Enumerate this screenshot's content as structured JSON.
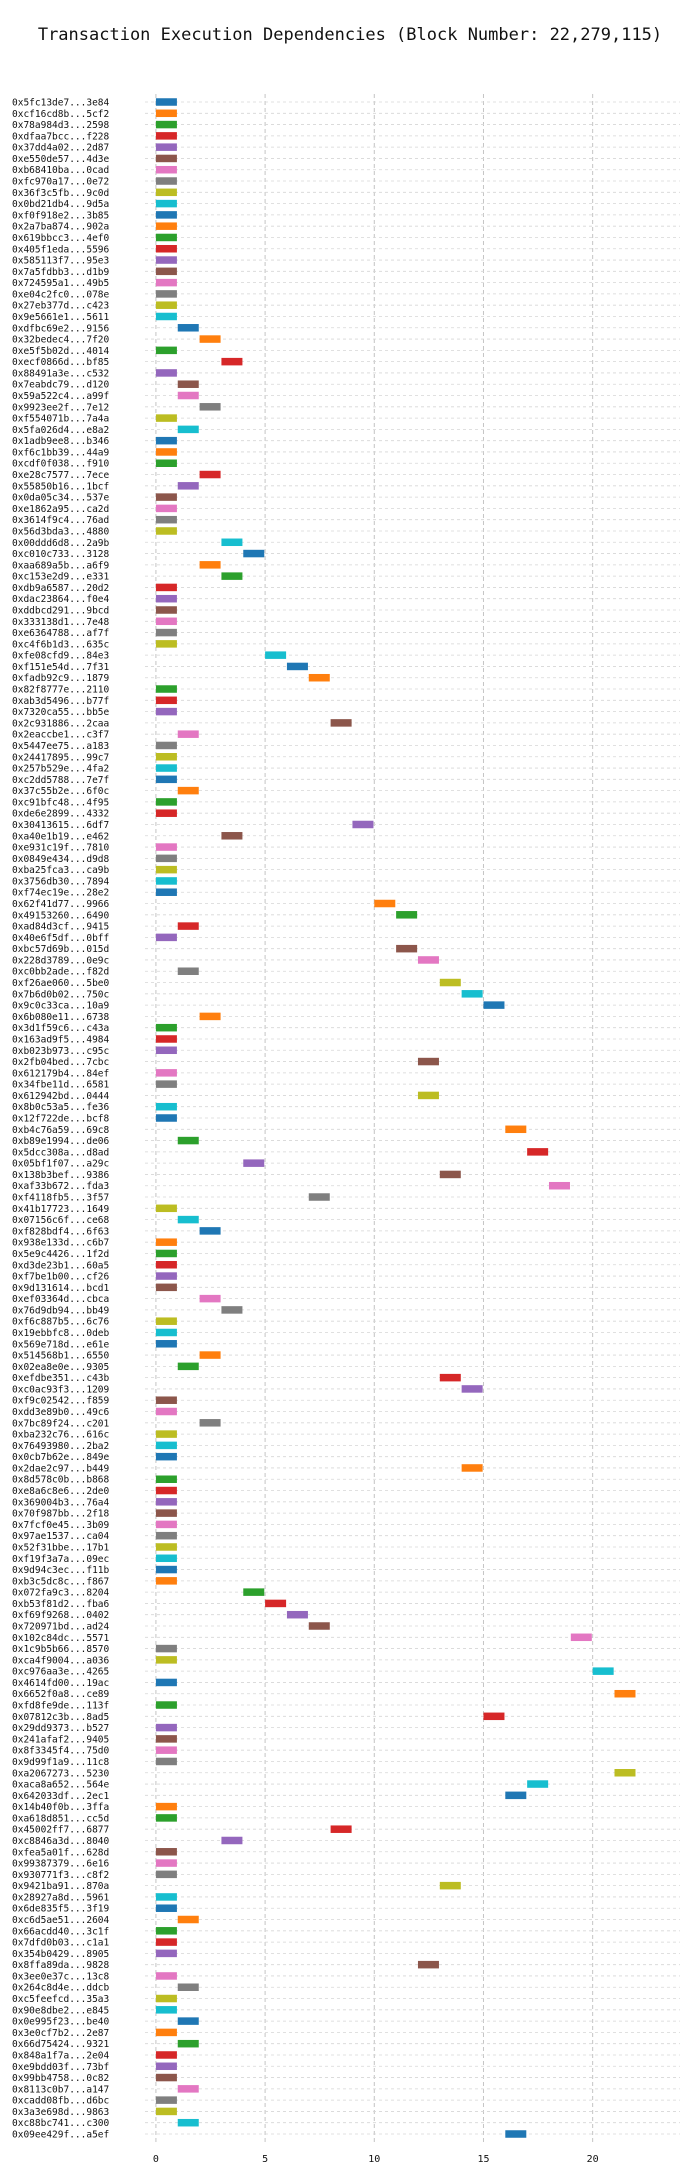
{
  "chart_data": {
    "type": "gantt",
    "title": "Transaction Execution Dependencies (Block Number: 22,279,115)",
    "xlabel": "",
    "ylabel": "",
    "x_ticks": [
      0,
      5,
      10,
      15,
      20
    ],
    "xlim": [
      -0.5,
      24
    ],
    "grid": true,
    "colors": [
      "#1f77b4",
      "#ff7f0e",
      "#2ca02c",
      "#d62728",
      "#9467bd",
      "#8c564b",
      "#e377c2",
      "#7f7f7f",
      "#bcbd22",
      "#17becf"
    ],
    "transactions": [
      {
        "label": "0x5fc13de7...3e84",
        "start": 0
      },
      {
        "label": "0xcf16cd8b...5cf2",
        "start": 0
      },
      {
        "label": "0x78a984d3...2598",
        "start": 0
      },
      {
        "label": "0xdfaa7bcc...f228",
        "start": 0
      },
      {
        "label": "0x37dd4a02...2d87",
        "start": 0
      },
      {
        "label": "0xe550de57...4d3e",
        "start": 0
      },
      {
        "label": "0xb68410ba...0cad",
        "start": 0
      },
      {
        "label": "0xfc970a17...0e72",
        "start": 0
      },
      {
        "label": "0x36f3c5fb...9c0d",
        "start": 0
      },
      {
        "label": "0x0bd21db4...9d5a",
        "start": 0
      },
      {
        "label": "0xf0f918e2...3b85",
        "start": 0
      },
      {
        "label": "0x2a7ba874...902a",
        "start": 0
      },
      {
        "label": "0x619bbcc3...4ef0",
        "start": 0
      },
      {
        "label": "0x405f1eda...5596",
        "start": 0
      },
      {
        "label": "0x585113f7...95e3",
        "start": 0
      },
      {
        "label": "0x7a5fdbb3...d1b9",
        "start": 0
      },
      {
        "label": "0x724595a1...49b5",
        "start": 0
      },
      {
        "label": "0xe04c2fc0...078e",
        "start": 0
      },
      {
        "label": "0x27eb377d...c423",
        "start": 0
      },
      {
        "label": "0x9e5661e1...5611",
        "start": 0
      },
      {
        "label": "0xdfbc69e2...9156",
        "start": 1
      },
      {
        "label": "0x32bedec4...7f20",
        "start": 2
      },
      {
        "label": "0xe5f5b02d...4014",
        "start": 0
      },
      {
        "label": "0xecf0866d...bf85",
        "start": 3
      },
      {
        "label": "0x88491a3e...c532",
        "start": 0
      },
      {
        "label": "0x7eabdc79...d120",
        "start": 1
      },
      {
        "label": "0x59a522c4...a99f",
        "start": 1
      },
      {
        "label": "0x9923ee2f...7e12",
        "start": 2
      },
      {
        "label": "0xf554071b...7a4a",
        "start": 0
      },
      {
        "label": "0x5fa026d4...e8a2",
        "start": 1
      },
      {
        "label": "0x1adb9ee8...b346",
        "start": 0
      },
      {
        "label": "0xf6c1bb39...44a9",
        "start": 0
      },
      {
        "label": "0xcdf0f038...f910",
        "start": 0
      },
      {
        "label": "0xe28c7577...7ece",
        "start": 2
      },
      {
        "label": "0x55850b16...1bcf",
        "start": 1
      },
      {
        "label": "0x0da05c34...537e",
        "start": 0
      },
      {
        "label": "0xe1862a95...ca2d",
        "start": 0
      },
      {
        "label": "0x3614f9c4...76ad",
        "start": 0
      },
      {
        "label": "0x56d3bda3...4880",
        "start": 0
      },
      {
        "label": "0x00ddd6d8...2a9b",
        "start": 3
      },
      {
        "label": "0xc010c733...3128",
        "start": 4
      },
      {
        "label": "0xaa689a5b...a6f9",
        "start": 2
      },
      {
        "label": "0xc153e2d9...e331",
        "start": 3
      },
      {
        "label": "0xdb9a6587...20d2",
        "start": 0
      },
      {
        "label": "0xdac23864...f0e4",
        "start": 0
      },
      {
        "label": "0xddbcd291...9bcd",
        "start": 0
      },
      {
        "label": "0x333138d1...7e48",
        "start": 0
      },
      {
        "label": "0xe6364788...af7f",
        "start": 0
      },
      {
        "label": "0xc4f6b1d3...635c",
        "start": 0
      },
      {
        "label": "0xfe08cfd9...84e3",
        "start": 5
      },
      {
        "label": "0xf151e54d...7f31",
        "start": 6
      },
      {
        "label": "0xfadb92c9...1879",
        "start": 7
      },
      {
        "label": "0x82f8777e...2110",
        "start": 0
      },
      {
        "label": "0xab3d5496...b77f",
        "start": 0
      },
      {
        "label": "0x7320ca55...bb5e",
        "start": 0
      },
      {
        "label": "0x2c931886...2caa",
        "start": 8
      },
      {
        "label": "0x2eaccbe1...c3f7",
        "start": 1
      },
      {
        "label": "0x5447ee75...a183",
        "start": 0
      },
      {
        "label": "0x24417895...99c7",
        "start": 0
      },
      {
        "label": "0x257b529e...4fa2",
        "start": 0
      },
      {
        "label": "0xc2dd5788...7e7f",
        "start": 0
      },
      {
        "label": "0x37c55b2e...6f0c",
        "start": 1
      },
      {
        "label": "0xc91bfc48...4f95",
        "start": 0
      },
      {
        "label": "0xde6e2899...4332",
        "start": 0
      },
      {
        "label": "0x30413615...6df7",
        "start": 9
      },
      {
        "label": "0xa40e1b19...e462",
        "start": 3
      },
      {
        "label": "0xe931c19f...7810",
        "start": 0
      },
      {
        "label": "0x0849e434...d9d8",
        "start": 0
      },
      {
        "label": "0xba25fca3...ca9b",
        "start": 0
      },
      {
        "label": "0x3756db30...7894",
        "start": 0
      },
      {
        "label": "0xf74ec19e...28e2",
        "start": 0
      },
      {
        "label": "0x62f41d77...9966",
        "start": 10
      },
      {
        "label": "0x49153260...6490",
        "start": 11
      },
      {
        "label": "0xad84d3cf...9415",
        "start": 1
      },
      {
        "label": "0x40e6f5df...0bff",
        "start": 0
      },
      {
        "label": "0xbc57d69b...015d",
        "start": 11
      },
      {
        "label": "0x228d3789...0e9c",
        "start": 12
      },
      {
        "label": "0xc0bb2ade...f82d",
        "start": 1
      },
      {
        "label": "0xf26ae060...5be0",
        "start": 13
      },
      {
        "label": "0x7b6d0b02...750c",
        "start": 14
      },
      {
        "label": "0x9c0c33ca...10a9",
        "start": 15
      },
      {
        "label": "0x6b080e11...6738",
        "start": 2
      },
      {
        "label": "0x3d1f59c6...c43a",
        "start": 0
      },
      {
        "label": "0x163ad9f5...4984",
        "start": 0
      },
      {
        "label": "0xb023b973...c95c",
        "start": 0
      },
      {
        "label": "0x2fb04bed...7cbc",
        "start": 12
      },
      {
        "label": "0x612179b4...84ef",
        "start": 0
      },
      {
        "label": "0x34fbe11d...6581",
        "start": 0
      },
      {
        "label": "0x612942bd...0444",
        "start": 12
      },
      {
        "label": "0x8b0c53a5...fe36",
        "start": 0
      },
      {
        "label": "0x12f722de...bcf8",
        "start": 0
      },
      {
        "label": "0xb4c76a59...69c8",
        "start": 16
      },
      {
        "label": "0xb89e1994...de06",
        "start": 1
      },
      {
        "label": "0x5dcc308a...d8ad",
        "start": 17
      },
      {
        "label": "0x05bf1f07...a29c",
        "start": 4
      },
      {
        "label": "0x138b3bef...9386",
        "start": 13
      },
      {
        "label": "0xaf33b672...fda3",
        "start": 18
      },
      {
        "label": "0xf4118fb5...3f57",
        "start": 7
      },
      {
        "label": "0x41b17723...1649",
        "start": 0
      },
      {
        "label": "0x07156c6f...ce68",
        "start": 1
      },
      {
        "label": "0xf828bdf4...6f63",
        "start": 2
      },
      {
        "label": "0x938e133d...c6b7",
        "start": 0
      },
      {
        "label": "0x5e9c4426...1f2d",
        "start": 0
      },
      {
        "label": "0xd3de23b1...60a5",
        "start": 0
      },
      {
        "label": "0xf7be1b00...cf26",
        "start": 0
      },
      {
        "label": "0x9d131614...bcd1",
        "start": 0
      },
      {
        "label": "0xef03364d...cbca",
        "start": 2
      },
      {
        "label": "0x76d9db94...bb49",
        "start": 3
      },
      {
        "label": "0xf6c887b5...6c76",
        "start": 0
      },
      {
        "label": "0x19ebbfc8...0deb",
        "start": 0
      },
      {
        "label": "0x569e718d...e61e",
        "start": 0
      },
      {
        "label": "0x514568b1...6550",
        "start": 2
      },
      {
        "label": "0x02ea8e0e...9305",
        "start": 1
      },
      {
        "label": "0xefdbe351...c43b",
        "start": 13
      },
      {
        "label": "0xc0ac93f3...1209",
        "start": 14
      },
      {
        "label": "0xf9c02542...f859",
        "start": 0
      },
      {
        "label": "0xdd3e89b0...49c6",
        "start": 0
      },
      {
        "label": "0x7bc89f24...c201",
        "start": 2
      },
      {
        "label": "0xba232c76...616c",
        "start": 0
      },
      {
        "label": "0x76493980...2ba2",
        "start": 0
      },
      {
        "label": "0x0cb7b62e...849e",
        "start": 0
      },
      {
        "label": "0x2dae2c97...b449",
        "start": 14
      },
      {
        "label": "0x8d578c0b...b868",
        "start": 0
      },
      {
        "label": "0xe8a6c8e6...2de0",
        "start": 0
      },
      {
        "label": "0x369004b3...76a4",
        "start": 0
      },
      {
        "label": "0x70f987bb...2f18",
        "start": 0
      },
      {
        "label": "0x7fcf0e45...3b09",
        "start": 0
      },
      {
        "label": "0x97ae1537...ca04",
        "start": 0
      },
      {
        "label": "0x52f31bbe...17b1",
        "start": 0
      },
      {
        "label": "0xf19f3a7a...09ec",
        "start": 0
      },
      {
        "label": "0x9d94c3ec...f11b",
        "start": 0
      },
      {
        "label": "0xb3c5dc8c...f867",
        "start": 0
      },
      {
        "label": "0x072fa9c3...8204",
        "start": 4
      },
      {
        "label": "0xb53f81d2...fba6",
        "start": 5
      },
      {
        "label": "0xf69f9268...0402",
        "start": 6
      },
      {
        "label": "0x720971bd...ad24",
        "start": 7
      },
      {
        "label": "0x102c84dc...5571",
        "start": 19
      },
      {
        "label": "0x1c9b5b66...8570",
        "start": 0
      },
      {
        "label": "0xca4f9004...a036",
        "start": 0
      },
      {
        "label": "0xc976aa3e...4265",
        "start": 20
      },
      {
        "label": "0x4614fd00...19ac",
        "start": 0
      },
      {
        "label": "0x6652f0a8...ce89",
        "start": 21
      },
      {
        "label": "0xfd8fe9de...113f",
        "start": 0
      },
      {
        "label": "0x07812c3b...8ad5",
        "start": 15
      },
      {
        "label": "0x29dd9373...b527",
        "start": 0
      },
      {
        "label": "0x241afaf2...9405",
        "start": 0
      },
      {
        "label": "0x8f3345f4...75d0",
        "start": 0
      },
      {
        "label": "0x9d99f1a9...11c8",
        "start": 0
      },
      {
        "label": "0xa2067273...5230",
        "start": 21
      },
      {
        "label": "0xaca8a652...564e",
        "start": 17
      },
      {
        "label": "0x642033df...2ec1",
        "start": 16
      },
      {
        "label": "0x14b40f0b...3ffa",
        "start": 0
      },
      {
        "label": "0xa618d851...cc5d",
        "start": 0
      },
      {
        "label": "0x45002ff7...6877",
        "start": 8
      },
      {
        "label": "0xc8846a3d...8040",
        "start": 3
      },
      {
        "label": "0xfea5a01f...628d",
        "start": 0
      },
      {
        "label": "0x99387379...6e16",
        "start": 0
      },
      {
        "label": "0x930771f3...c8f2",
        "start": 0
      },
      {
        "label": "0x9421ba91...870a",
        "start": 13
      },
      {
        "label": "0x28927a8d...5961",
        "start": 0
      },
      {
        "label": "0x6de835f5...3f19",
        "start": 0
      },
      {
        "label": "0xc6d5ae51...2604",
        "start": 1
      },
      {
        "label": "0x66acdd40...3c1f",
        "start": 0
      },
      {
        "label": "0x7dfd0b03...c1a1",
        "start": 0
      },
      {
        "label": "0x354b0429...8905",
        "start": 0
      },
      {
        "label": "0x8ffa89da...9828",
        "start": 12
      },
      {
        "label": "0x3ee0e37c...13c8",
        "start": 0
      },
      {
        "label": "0x264c8d4e...ddcb",
        "start": 1
      },
      {
        "label": "0xc5feefcd...35a3",
        "start": 0
      },
      {
        "label": "0x90e8dbe2...e845",
        "start": 0
      },
      {
        "label": "0x0e995f23...be40",
        "start": 1
      },
      {
        "label": "0x3e0cf7b2...2e87",
        "start": 0
      },
      {
        "label": "0x66d75424...9321",
        "start": 1
      },
      {
        "label": "0x848a1f7a...2e04",
        "start": 0
      },
      {
        "label": "0xe9bdd03f...73bf",
        "start": 0
      },
      {
        "label": "0x99bb4758...0c82",
        "start": 0
      },
      {
        "label": "0x8113c0b7...a147",
        "start": 1
      },
      {
        "label": "0xcadd08fb...d6bc",
        "start": 0
      },
      {
        "label": "0x3a3e698d...9863",
        "start": 0
      },
      {
        "label": "0xc88bc741...c300",
        "start": 1
      },
      {
        "label": "0x09ee429f...a5ef",
        "start": 16
      }
    ]
  }
}
